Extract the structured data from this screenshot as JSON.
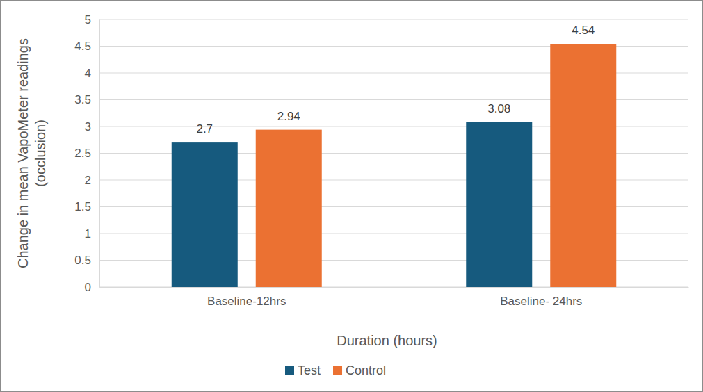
{
  "chart_data": {
    "type": "bar",
    "xlabel": "Duration (hours)",
    "ylabel": "Change in mean VapoMeter readings (occlusion)",
    "categories": [
      "Baseline-12hrs",
      "Baseline- 24hrs"
    ],
    "series": [
      {
        "name": "Test",
        "color": "#165a7e",
        "values": [
          2.7,
          3.08
        ]
      },
      {
        "name": "Control",
        "color": "#eb7132",
        "values": [
          2.94,
          4.54
        ]
      }
    ],
    "ylim": [
      0,
      5
    ],
    "yticks": [
      0,
      0.5,
      1,
      1.5,
      2,
      2.5,
      3,
      3.5,
      4,
      4.5,
      5
    ],
    "grid": true,
    "legend": "bottom",
    "data_labels": true
  }
}
